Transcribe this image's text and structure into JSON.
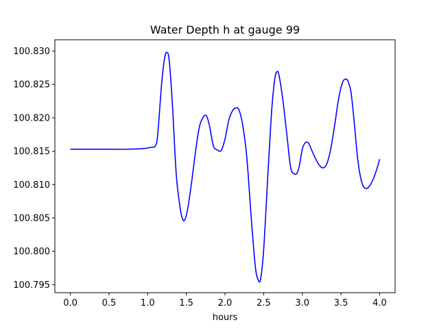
{
  "chart_data": {
    "type": "line",
    "title": "Water Depth h at gauge 99",
    "xlabel": "hours",
    "ylabel": "",
    "xlim": [
      -0.2,
      4.2
    ],
    "ylim": [
      100.7938,
      100.8317
    ],
    "grid": false,
    "xticks": [
      0.0,
      0.5,
      1.0,
      1.5,
      2.0,
      2.5,
      3.0,
      3.5,
      4.0
    ],
    "xtick_labels": [
      "0.0",
      "0.5",
      "1.0",
      "1.5",
      "2.0",
      "2.5",
      "3.0",
      "3.5",
      "4.0"
    ],
    "yticks": [
      100.795,
      100.8,
      100.805,
      100.81,
      100.815,
      100.82,
      100.825,
      100.83
    ],
    "ytick_labels": [
      "100.795",
      "100.800",
      "100.805",
      "100.810",
      "100.815",
      "100.820",
      "100.825",
      "100.830"
    ],
    "series": [
      {
        "color": "#0000ff",
        "x": [
          0.0,
          0.25,
          0.5,
          0.75,
          0.95,
          1.05,
          1.1,
          1.13,
          1.18,
          1.22,
          1.25,
          1.28,
          1.32,
          1.37,
          1.42,
          1.45,
          1.48,
          1.52,
          1.57,
          1.62,
          1.67,
          1.72,
          1.76,
          1.8,
          1.85,
          1.9,
          1.95,
          2.0,
          2.05,
          2.1,
          2.15,
          2.18,
          2.22,
          2.27,
          2.3,
          2.33,
          2.37,
          2.4,
          2.43,
          2.46,
          2.5,
          2.55,
          2.6,
          2.64,
          2.67,
          2.7,
          2.75,
          2.8,
          2.85,
          2.9,
          2.93,
          2.96,
          3.0,
          3.04,
          3.08,
          3.12,
          3.17,
          3.22,
          3.27,
          3.32,
          3.37,
          3.42,
          3.47,
          3.52,
          3.56,
          3.59,
          3.63,
          3.67,
          3.72,
          3.77,
          3.82,
          3.87,
          3.92,
          3.96,
          4.0
        ],
        "y": [
          100.8153,
          100.8153,
          100.8153,
          100.8153,
          100.8154,
          100.8156,
          100.8158,
          100.8175,
          100.825,
          100.829,
          100.8298,
          100.8285,
          100.822,
          100.8115,
          100.8065,
          100.8049,
          100.8047,
          100.8065,
          100.8105,
          100.815,
          100.8187,
          100.8201,
          100.8203,
          100.8188,
          100.8158,
          100.8152,
          100.8151,
          100.8168,
          100.8197,
          100.8211,
          100.8215,
          100.8212,
          100.8195,
          100.8155,
          100.8115,
          100.8065,
          100.8005,
          100.797,
          100.7957,
          100.7958,
          100.8002,
          100.8105,
          100.8205,
          100.8255,
          100.8269,
          100.8263,
          100.8225,
          100.8175,
          100.8125,
          100.8116,
          100.8117,
          100.8127,
          100.8153,
          100.8163,
          100.8162,
          100.8152,
          100.8139,
          100.8129,
          100.8125,
          100.8132,
          100.8155,
          100.819,
          100.8229,
          100.8253,
          100.8258,
          100.8255,
          100.8238,
          100.8195,
          100.8135,
          100.8103,
          100.8094,
          100.8098,
          100.8109,
          100.8122,
          100.8138
        ]
      }
    ]
  }
}
